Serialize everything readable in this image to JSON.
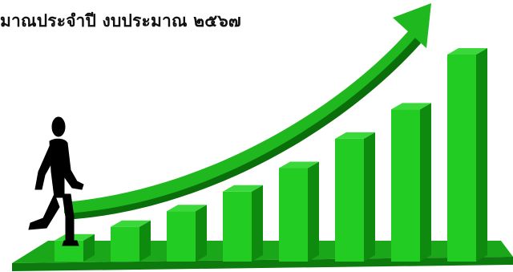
{
  "banner": {
    "title": "มาณประจำปี งบประมาณ ๒๕๖๗"
  },
  "illustration": {
    "subject": "growth-bars-with-walking-figure",
    "colors": {
      "bar_front": "#22cc22",
      "bar_side": "#0e8a0e",
      "bar_top": "#3bd83b",
      "floor": "#1aa81a",
      "floor_edge": "#0c7a0c",
      "arrow": "#1fb81f",
      "arrow_shadow": "#0a6f0a",
      "figure": "#000000"
    },
    "bar_levels": [
      0.05,
      0.12,
      0.2,
      0.3,
      0.42,
      0.57,
      0.72,
      1.0
    ]
  }
}
